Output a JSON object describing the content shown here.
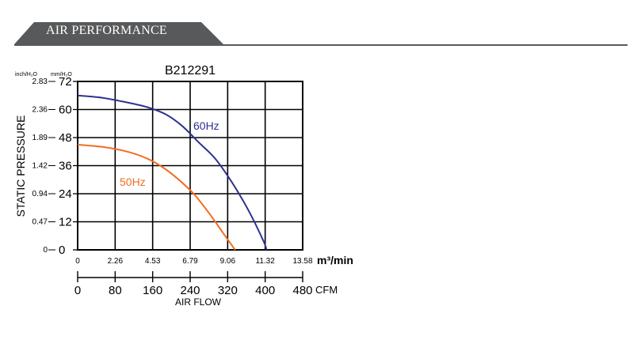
{
  "header": {
    "title": "AIR PERFORMANCE"
  },
  "chart_data": {
    "type": "line",
    "title": "B212291",
    "ylabel": "STATIC PRESSURE",
    "xlabel": "AIR FLOW",
    "y_units": {
      "inch": "inch/H₂O",
      "mm": "mm/H₂O"
    },
    "x_units": {
      "metric": "m³/min",
      "imperial": "CFM"
    },
    "x_metric_ticks": [
      "0",
      "2.26",
      "4.53",
      "6.79",
      "9.06",
      "11.32",
      "13.58"
    ],
    "x_cfm_ticks": [
      "0",
      "80",
      "160",
      "240",
      "320",
      "400",
      "480"
    ],
    "y_mm_ticks": [
      "0",
      "12",
      "24",
      "36",
      "48",
      "60",
      "72"
    ],
    "y_inch_ticks": [
      "0",
      "0.47",
      "0.94",
      "1.42",
      "1.89",
      "2.36",
      "2.83"
    ],
    "xlim": [
      0,
      13.58
    ],
    "ylim": [
      0,
      72
    ],
    "grid": true,
    "series": [
      {
        "name": "60Hz",
        "color": "#2e3192",
        "x": [
          0,
          1.5,
          3.0,
          4.2,
          5.3,
          6.3,
          7.3,
          8.3,
          9.3,
          10.3,
          11.2,
          11.4
        ],
        "y": [
          66,
          65,
          63,
          61,
          58,
          53,
          46,
          39,
          29,
          17,
          4,
          0
        ]
      },
      {
        "name": "50Hz",
        "color": "#f26d21",
        "x": [
          0,
          1.5,
          3.0,
          4.2,
          5.2,
          6.1,
          7.0,
          7.9,
          8.7,
          9.3,
          9.5
        ],
        "y": [
          45,
          44,
          42,
          39,
          35,
          30,
          24,
          16,
          8,
          2,
          0
        ]
      }
    ]
  }
}
